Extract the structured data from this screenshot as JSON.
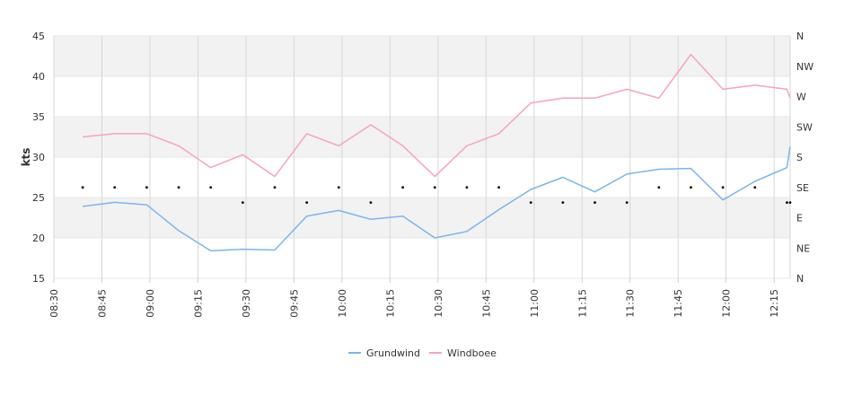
{
  "chart_data": {
    "type": "line",
    "ylabel": "kts",
    "ylim": [
      15,
      45
    ],
    "yticks": [
      15,
      20,
      25,
      30,
      35,
      40,
      45
    ],
    "xlim": [
      "08:30",
      "12:20"
    ],
    "xtick_labels": [
      "08:30",
      "08:45",
      "09:00",
      "09:15",
      "09:30",
      "09:45",
      "10:00",
      "10:15",
      "10:30",
      "10:45",
      "11:00",
      "11:15",
      "11:30",
      "11:45",
      "12:00",
      "12:15"
    ],
    "right_axis_labels": [
      "N",
      "NE",
      "E",
      "SE",
      "S",
      "SW",
      "W",
      "NW",
      "N"
    ],
    "legend_position": "bottom-center",
    "grid": true,
    "x": [
      "08:39",
      "08:49",
      "08:59",
      "09:09",
      "09:19",
      "09:29",
      "09:39",
      "09:49",
      "09:59",
      "10:09",
      "10:19",
      "10:29",
      "10:39",
      "10:49",
      "10:59",
      "11:09",
      "11:19",
      "11:29",
      "11:39",
      "11:49",
      "11:59",
      "12:09",
      "12:19",
      "12:20"
    ],
    "series": [
      {
        "name": "Grundwind",
        "color": "#7cb5ec",
        "values": [
          23.9,
          24.4,
          24.1,
          20.9,
          18.4,
          18.6,
          18.5,
          22.7,
          23.4,
          22.3,
          22.7,
          20.0,
          20.8,
          23.5,
          26.0,
          27.5,
          25.7,
          27.9,
          28.5,
          28.6,
          24.7,
          27.0,
          28.7,
          31.3
        ]
      },
      {
        "name": "Windboee",
        "color": "#f7a1c4",
        "values": [
          32.5,
          32.9,
          32.9,
          31.4,
          28.7,
          30.3,
          27.6,
          32.9,
          31.4,
          34.0,
          31.4,
          27.6,
          31.4,
          32.9,
          36.7,
          37.3,
          37.3,
          38.4,
          37.3,
          42.7,
          38.4,
          38.9,
          38.4,
          37.3
        ]
      }
    ],
    "direction_markers": {
      "x": [
        "08:39",
        "08:49",
        "08:59",
        "09:09",
        "09:19",
        "09:29",
        "09:39",
        "09:49",
        "09:59",
        "10:09",
        "10:19",
        "10:29",
        "10:39",
        "10:49",
        "10:59",
        "11:09",
        "11:19",
        "11:29",
        "11:39",
        "11:49",
        "11:59",
        "12:09",
        "12:19",
        "12:20"
      ],
      "directions": [
        "SE",
        "SE",
        "SE",
        "SE",
        "SE",
        "SE/E",
        "SE",
        "SE/E",
        "SE",
        "SE/E",
        "SE",
        "SE",
        "SE",
        "SE",
        "SE/E",
        "SE/E",
        "SE/E",
        "SE/E",
        "SE",
        "SE",
        "SE",
        "SE",
        "SE/E",
        "SE/E"
      ],
      "color": "#000000"
    }
  }
}
